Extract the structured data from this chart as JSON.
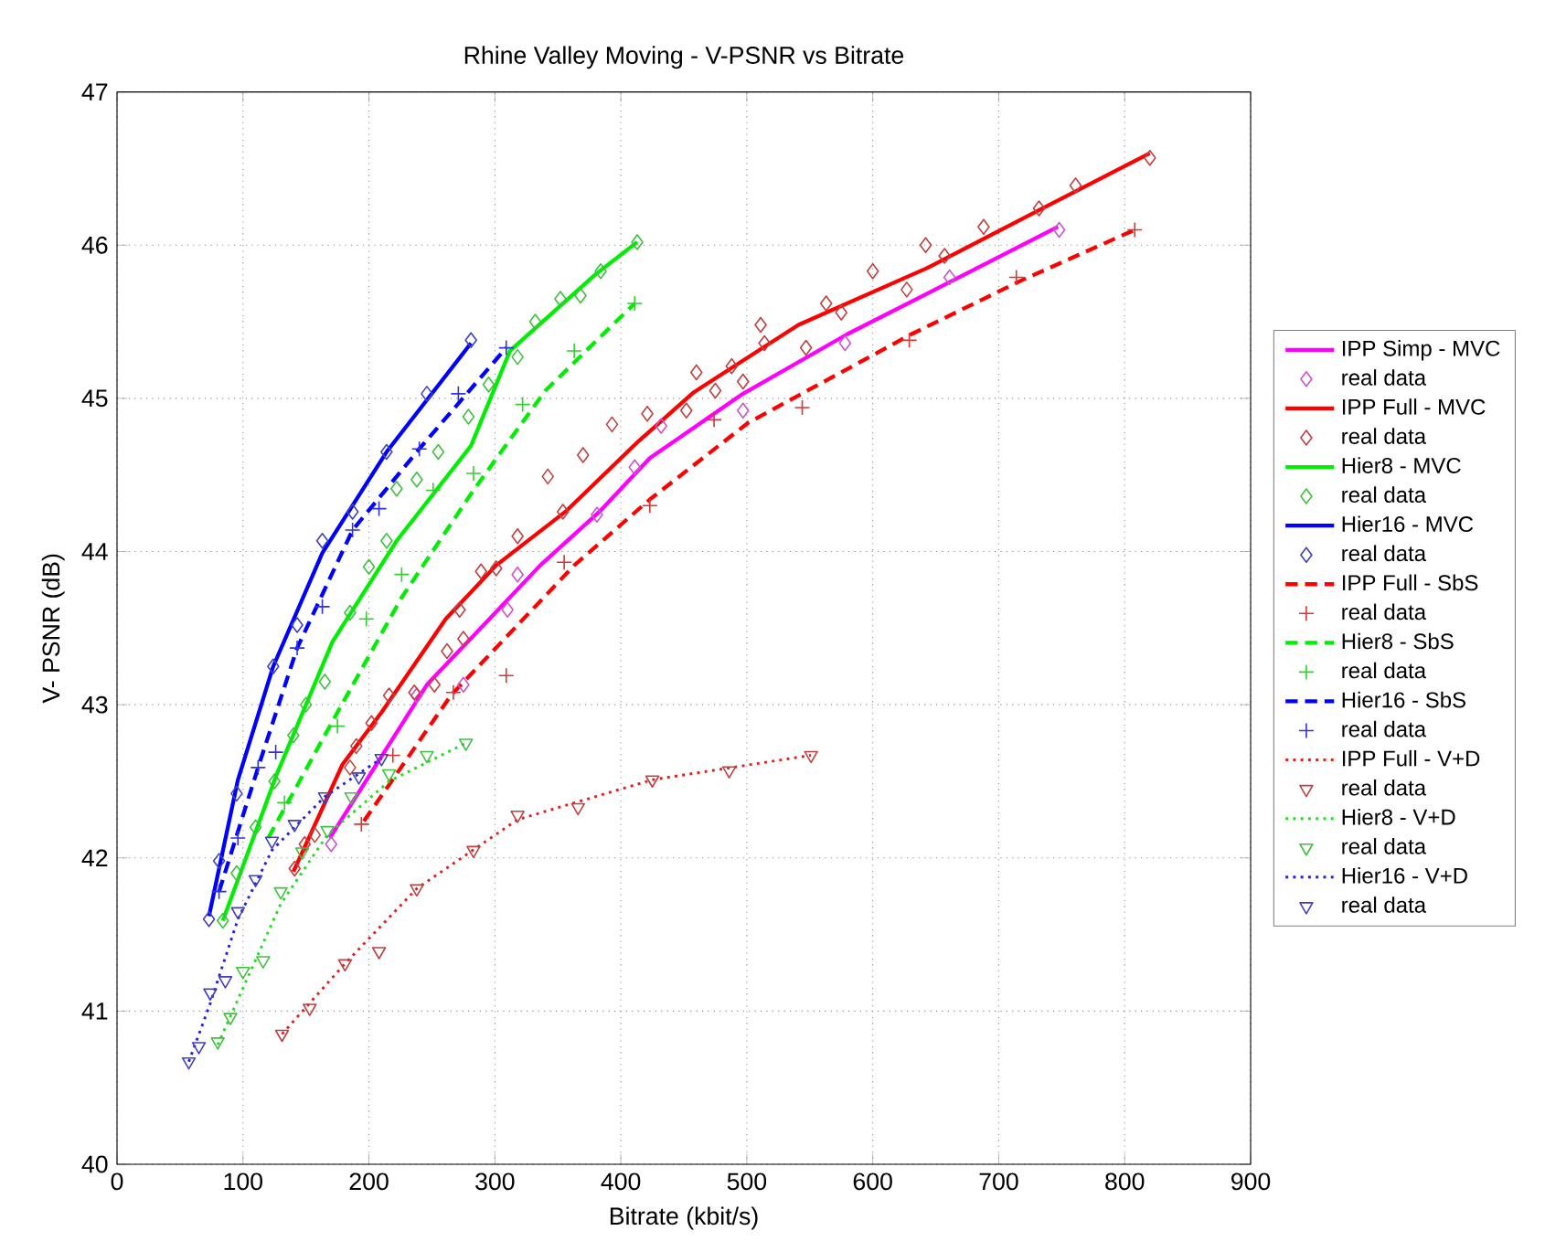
{
  "chart_data": {
    "type": "line",
    "title": "Rhine Valley Moving  - V-PSNR vs Bitrate",
    "xlabel": "Bitrate (kbit/s)",
    "ylabel": "V- PSNR (dB)",
    "xlim": [
      0,
      900
    ],
    "ylim": [
      40,
      47
    ],
    "xticks": [
      0,
      100,
      200,
      300,
      400,
      500,
      600,
      700,
      800,
      900
    ],
    "yticks": [
      40,
      41,
      42,
      43,
      44,
      45,
      46,
      47
    ],
    "grid": true,
    "legend": "right",
    "series": [
      {
        "name": "IPP Simp - MVC",
        "color": "#ff00ff",
        "line_style": "solid",
        "x": [
          169,
          246,
          336,
          383,
          423,
          497,
          580,
          659,
          747
        ],
        "values": [
          42.13,
          43.13,
          43.91,
          44.26,
          44.61,
          45.03,
          45.42,
          45.75,
          46.12
        ]
      },
      {
        "type": "scatter",
        "name": "real data",
        "color": "#cc55cc",
        "marker": "diamond",
        "x": [
          170,
          238,
          275,
          310,
          318,
          381,
          411,
          432,
          497,
          578,
          661,
          748
        ],
        "values": [
          42.09,
          43.06,
          43.13,
          43.62,
          43.85,
          44.24,
          44.55,
          44.82,
          44.92,
          45.36,
          45.79,
          46.1
        ]
      },
      {
        "name": "IPP Full - MVC",
        "color": "#ff0000",
        "line_style": "solid",
        "x": [
          140,
          179,
          210,
          261,
          301,
          356,
          414,
          458,
          541,
          643,
          730,
          820
        ],
        "values": [
          41.91,
          42.61,
          42.95,
          43.56,
          43.91,
          44.26,
          44.72,
          45.04,
          45.48,
          45.85,
          46.22,
          46.6
        ]
      },
      {
        "type": "scatter",
        "name": "real data",
        "color": "#c04040",
        "marker": "diamond",
        "x": [
          141,
          149,
          157,
          185,
          190,
          202,
          216,
          236,
          252,
          262,
          272,
          275,
          289,
          301,
          318,
          342,
          354,
          370,
          393,
          421,
          452,
          460,
          475,
          488,
          497,
          511,
          514,
          547,
          563,
          575,
          600,
          627,
          642,
          657,
          688,
          732,
          761,
          820
        ],
        "values": [
          41.93,
          42.09,
          42.15,
          42.59,
          42.73,
          42.88,
          43.06,
          43.08,
          43.13,
          43.35,
          43.62,
          43.43,
          43.87,
          43.89,
          44.1,
          44.49,
          44.26,
          44.63,
          44.83,
          44.9,
          44.92,
          45.17,
          45.05,
          45.21,
          45.11,
          45.48,
          45.36,
          45.33,
          45.62,
          45.56,
          45.83,
          45.71,
          46.0,
          45.93,
          46.12,
          46.24,
          46.39,
          46.57
        ]
      },
      {
        "name": "Hier8 - MVC",
        "color": "#00ee00",
        "line_style": "solid",
        "x": [
          84,
          127,
          171,
          222,
          281,
          312,
          380,
          413
        ],
        "values": [
          41.59,
          42.55,
          43.41,
          44.07,
          44.69,
          45.31,
          45.81,
          46.02
        ]
      },
      {
        "type": "scatter",
        "name": "real data",
        "color": "#40c040",
        "marker": "diamond",
        "x": [
          84,
          95,
          110,
          125,
          140,
          150,
          165,
          185,
          200,
          214,
          222,
          238,
          255,
          279,
          295,
          318,
          332,
          352,
          368,
          384,
          413
        ],
        "values": [
          41.59,
          41.9,
          42.2,
          42.5,
          42.8,
          43.0,
          43.15,
          43.6,
          43.9,
          44.07,
          44.41,
          44.47,
          44.65,
          44.88,
          45.09,
          45.27,
          45.5,
          45.65,
          45.67,
          45.83,
          46.02
        ]
      },
      {
        "name": "Hier16 - MVC",
        "color": "#0000ff",
        "line_style": "solid",
        "x": [
          73,
          96,
          124,
          163,
          214,
          281
        ],
        "values": [
          41.62,
          42.51,
          43.25,
          43.99,
          44.65,
          45.36
        ]
      },
      {
        "type": "scatter",
        "name": "real data",
        "color": "#4040c0",
        "marker": "diamond",
        "x": [
          73,
          81,
          95,
          124,
          143,
          163,
          187,
          214,
          246,
          281
        ],
        "values": [
          41.6,
          41.98,
          42.42,
          43.25,
          43.52,
          44.07,
          44.26,
          44.65,
          45.03,
          45.38
        ]
      },
      {
        "name": "IPP Full - SbS",
        "color": "#ff0000",
        "line_style": "dashed",
        "x": [
          196,
          265,
          363,
          423,
          501,
          631,
          718,
          808
        ],
        "values": [
          42.24,
          43.06,
          43.91,
          44.34,
          44.84,
          45.42,
          45.77,
          46.1
        ]
      },
      {
        "type": "scatter",
        "name": "real data",
        "color": "#e03030",
        "marker": "cross",
        "x": [
          194,
          219,
          267,
          309,
          355,
          423,
          474,
          544,
          629,
          714,
          808
        ],
        "values": [
          42.22,
          42.67,
          43.08,
          43.19,
          43.93,
          44.3,
          44.86,
          44.94,
          45.38,
          45.79,
          46.1
        ]
      },
      {
        "name": "Hier8 - SbS",
        "color": "#00ee00",
        "line_style": "dashed",
        "x": [
          120,
          175,
          226,
          283,
          340,
          411
        ],
        "values": [
          42.13,
          42.95,
          43.7,
          44.4,
          45.05,
          45.62
        ]
      },
      {
        "type": "scatter",
        "name": "real data",
        "color": "#30d030",
        "marker": "cross",
        "x": [
          133,
          175,
          198,
          226,
          251,
          283,
          322,
          363,
          411
        ],
        "values": [
          42.36,
          42.86,
          43.56,
          43.85,
          44.4,
          44.51,
          44.96,
          45.31,
          45.62
        ]
      },
      {
        "name": "Hier16 - SbS",
        "color": "#0000ff",
        "line_style": "dashed",
        "x": [
          81,
          112,
          143,
          187,
          240,
          309
        ],
        "values": [
          41.78,
          42.59,
          43.37,
          44.14,
          44.67,
          45.33
        ]
      },
      {
        "type": "scatter",
        "name": "real data",
        "color": "#3030e0",
        "marker": "cross",
        "x": [
          81,
          96,
          112,
          126,
          143,
          163,
          187,
          208,
          240,
          271,
          309
        ],
        "values": [
          41.78,
          42.13,
          42.59,
          42.69,
          43.37,
          43.64,
          44.14,
          44.28,
          44.67,
          45.03,
          45.33
        ]
      },
      {
        "name": "IPP Full - V+D",
        "color": "#dd2222",
        "line_style": "dotted",
        "x": [
          131,
          181,
          238,
          318,
          425,
          551
        ],
        "values": [
          40.85,
          41.31,
          41.8,
          42.25,
          42.51,
          42.67
        ]
      },
      {
        "type": "scatter",
        "name": "real data",
        "color": "#c04040",
        "marker": "triangle",
        "x": [
          131,
          153,
          181,
          208,
          238,
          283,
          318,
          366,
          425,
          486,
          551
        ],
        "values": [
          40.85,
          41.02,
          41.31,
          41.39,
          41.8,
          42.05,
          42.28,
          42.33,
          42.51,
          42.57,
          42.67
        ]
      },
      {
        "name": "Hier8 - V+D",
        "color": "#22dd22",
        "line_style": "dotted",
        "x": [
          80,
          100,
          130,
          167,
          216,
          277
        ],
        "values": [
          40.78,
          41.15,
          41.7,
          42.15,
          42.5,
          42.75
        ]
      },
      {
        "type": "scatter",
        "name": "real data",
        "color": "#40c040",
        "marker": "triangle",
        "x": [
          80,
          90,
          100,
          116,
          130,
          147,
          167,
          186,
          216,
          246,
          277
        ],
        "values": [
          40.8,
          40.96,
          41.26,
          41.33,
          41.78,
          42.04,
          42.18,
          42.4,
          42.55,
          42.67,
          42.75
        ]
      },
      {
        "name": "Hier16 - V+D",
        "color": "#2222dd",
        "line_style": "dotted",
        "x": [
          57,
          74,
          96,
          123,
          165,
          210
        ],
        "values": [
          40.67,
          41.05,
          41.6,
          42.05,
          42.4,
          42.65
        ]
      },
      {
        "type": "scatter",
        "name": "real data",
        "color": "#4040c0",
        "marker": "triangle",
        "x": [
          57,
          65,
          74,
          86,
          96,
          110,
          123,
          141,
          165,
          192,
          210
        ],
        "values": [
          40.67,
          40.77,
          41.12,
          41.2,
          41.65,
          41.86,
          42.11,
          42.22,
          42.4,
          42.53,
          42.65
        ]
      }
    ]
  }
}
